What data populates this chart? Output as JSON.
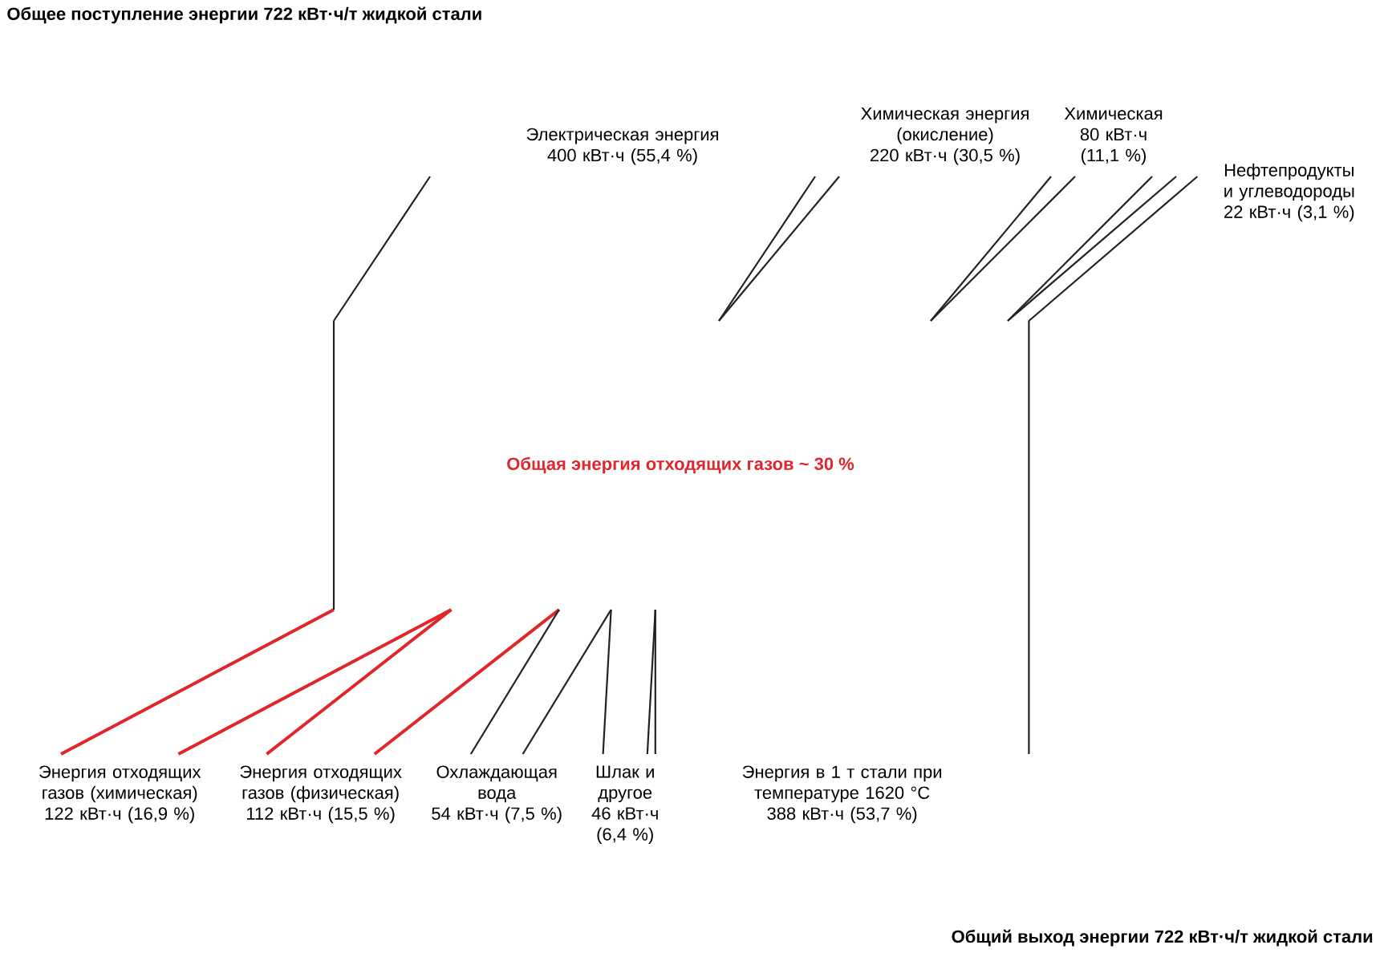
{
  "chart_data": {
    "type": "other",
    "title": "Общее поступление энергии 722 кВт·ч/т жидкой стали",
    "annotations": [
      "Общий выход энергии  722 кВт·ч/т жидкой стали",
      "Общая энергия отходящих газов ~ 30 %"
    ],
    "categories": [
      "Электрическая энергия",
      "Химическая энергия (окисление)",
      "Химическая",
      "Нефтепродукты и углеводороды",
      "Энергия отходящих газов (химическая)",
      "Энергия отходящих газов (физическая)",
      "Охлаждающая вода",
      "Шлак и другое",
      "Энергия в 1 т стали при температуре 1620 °C"
    ],
    "series": [
      {
        "values": [
          400,
          220,
          80,
          22,
          null,
          null,
          null,
          null,
          null
        ],
        "value_labels": [
          "400 кВт·ч (55,4 %)",
          "220 кВт·ч (30,5 %)",
          "80 кВт·ч (11,1 %)",
          "22 кВт·ч (3,1 %)",
          null,
          null,
          null,
          null,
          null
        ]
      },
      {
        "values": [
          null,
          null,
          null,
          null,
          122,
          112,
          54,
          46,
          388
        ],
        "value_labels": [
          null,
          null,
          null,
          null,
          "122 кВт·ч (16,9 %)",
          "112 кВт·ч (15,5 %)",
          "54 кВт·ч (7,5 %)",
          "46 кВт·ч (6,4 %)",
          "388 кВт·ч (53,7 %)"
        ]
      }
    ],
    "colors": [
      "#222222",
      "#222222",
      "#222222",
      "#222222",
      "#e0262b",
      "#e0262b",
      "#222222",
      "#222222",
      "#222222"
    ]
  }
}
